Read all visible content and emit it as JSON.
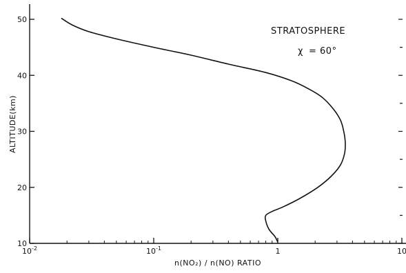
{
  "chart_data": {
    "type": "line",
    "xlabel": "n(NO₂) / n(NO) RATIO",
    "ylabel": "ALTITUDE(km)",
    "x_scale": "log",
    "xlim": [
      0.01,
      10
    ],
    "ylim": [
      10,
      52
    ],
    "x_ticks": [
      {
        "value": 0.01,
        "base": "10",
        "exp": "-2"
      },
      {
        "value": 0.1,
        "base": "10",
        "exp": "-1"
      },
      {
        "value": 1,
        "base": "1",
        "exp": ""
      },
      {
        "value": 10,
        "base": "10",
        "exp": ""
      }
    ],
    "y_ticks": [
      10,
      20,
      30,
      40,
      50
    ],
    "grid": false,
    "annotations": {
      "region": "STRATOSPHERE",
      "angle_symbol": "χ",
      "angle_value": "= 60°"
    },
    "series": [
      {
        "x": [
          0.018,
          0.022,
          0.03,
          0.05,
          0.1,
          0.2,
          0.4,
          0.8,
          1.3,
          1.8,
          2.3,
          2.8,
          3.2,
          3.4,
          3.5,
          3.45,
          3.2,
          2.7,
          2.1,
          1.5,
          1.1,
          0.9,
          0.8,
          0.8,
          0.85,
          0.95,
          1.0
        ],
        "y": [
          50.2,
          49.0,
          47.8,
          46.5,
          45.0,
          43.6,
          42.0,
          40.5,
          39.0,
          37.5,
          36.0,
          34.0,
          32.0,
          30.0,
          28.0,
          26.0,
          24.0,
          22.0,
          20.0,
          18.0,
          16.5,
          15.7,
          15.0,
          14.0,
          12.5,
          11.2,
          10.2
        ]
      }
    ]
  }
}
